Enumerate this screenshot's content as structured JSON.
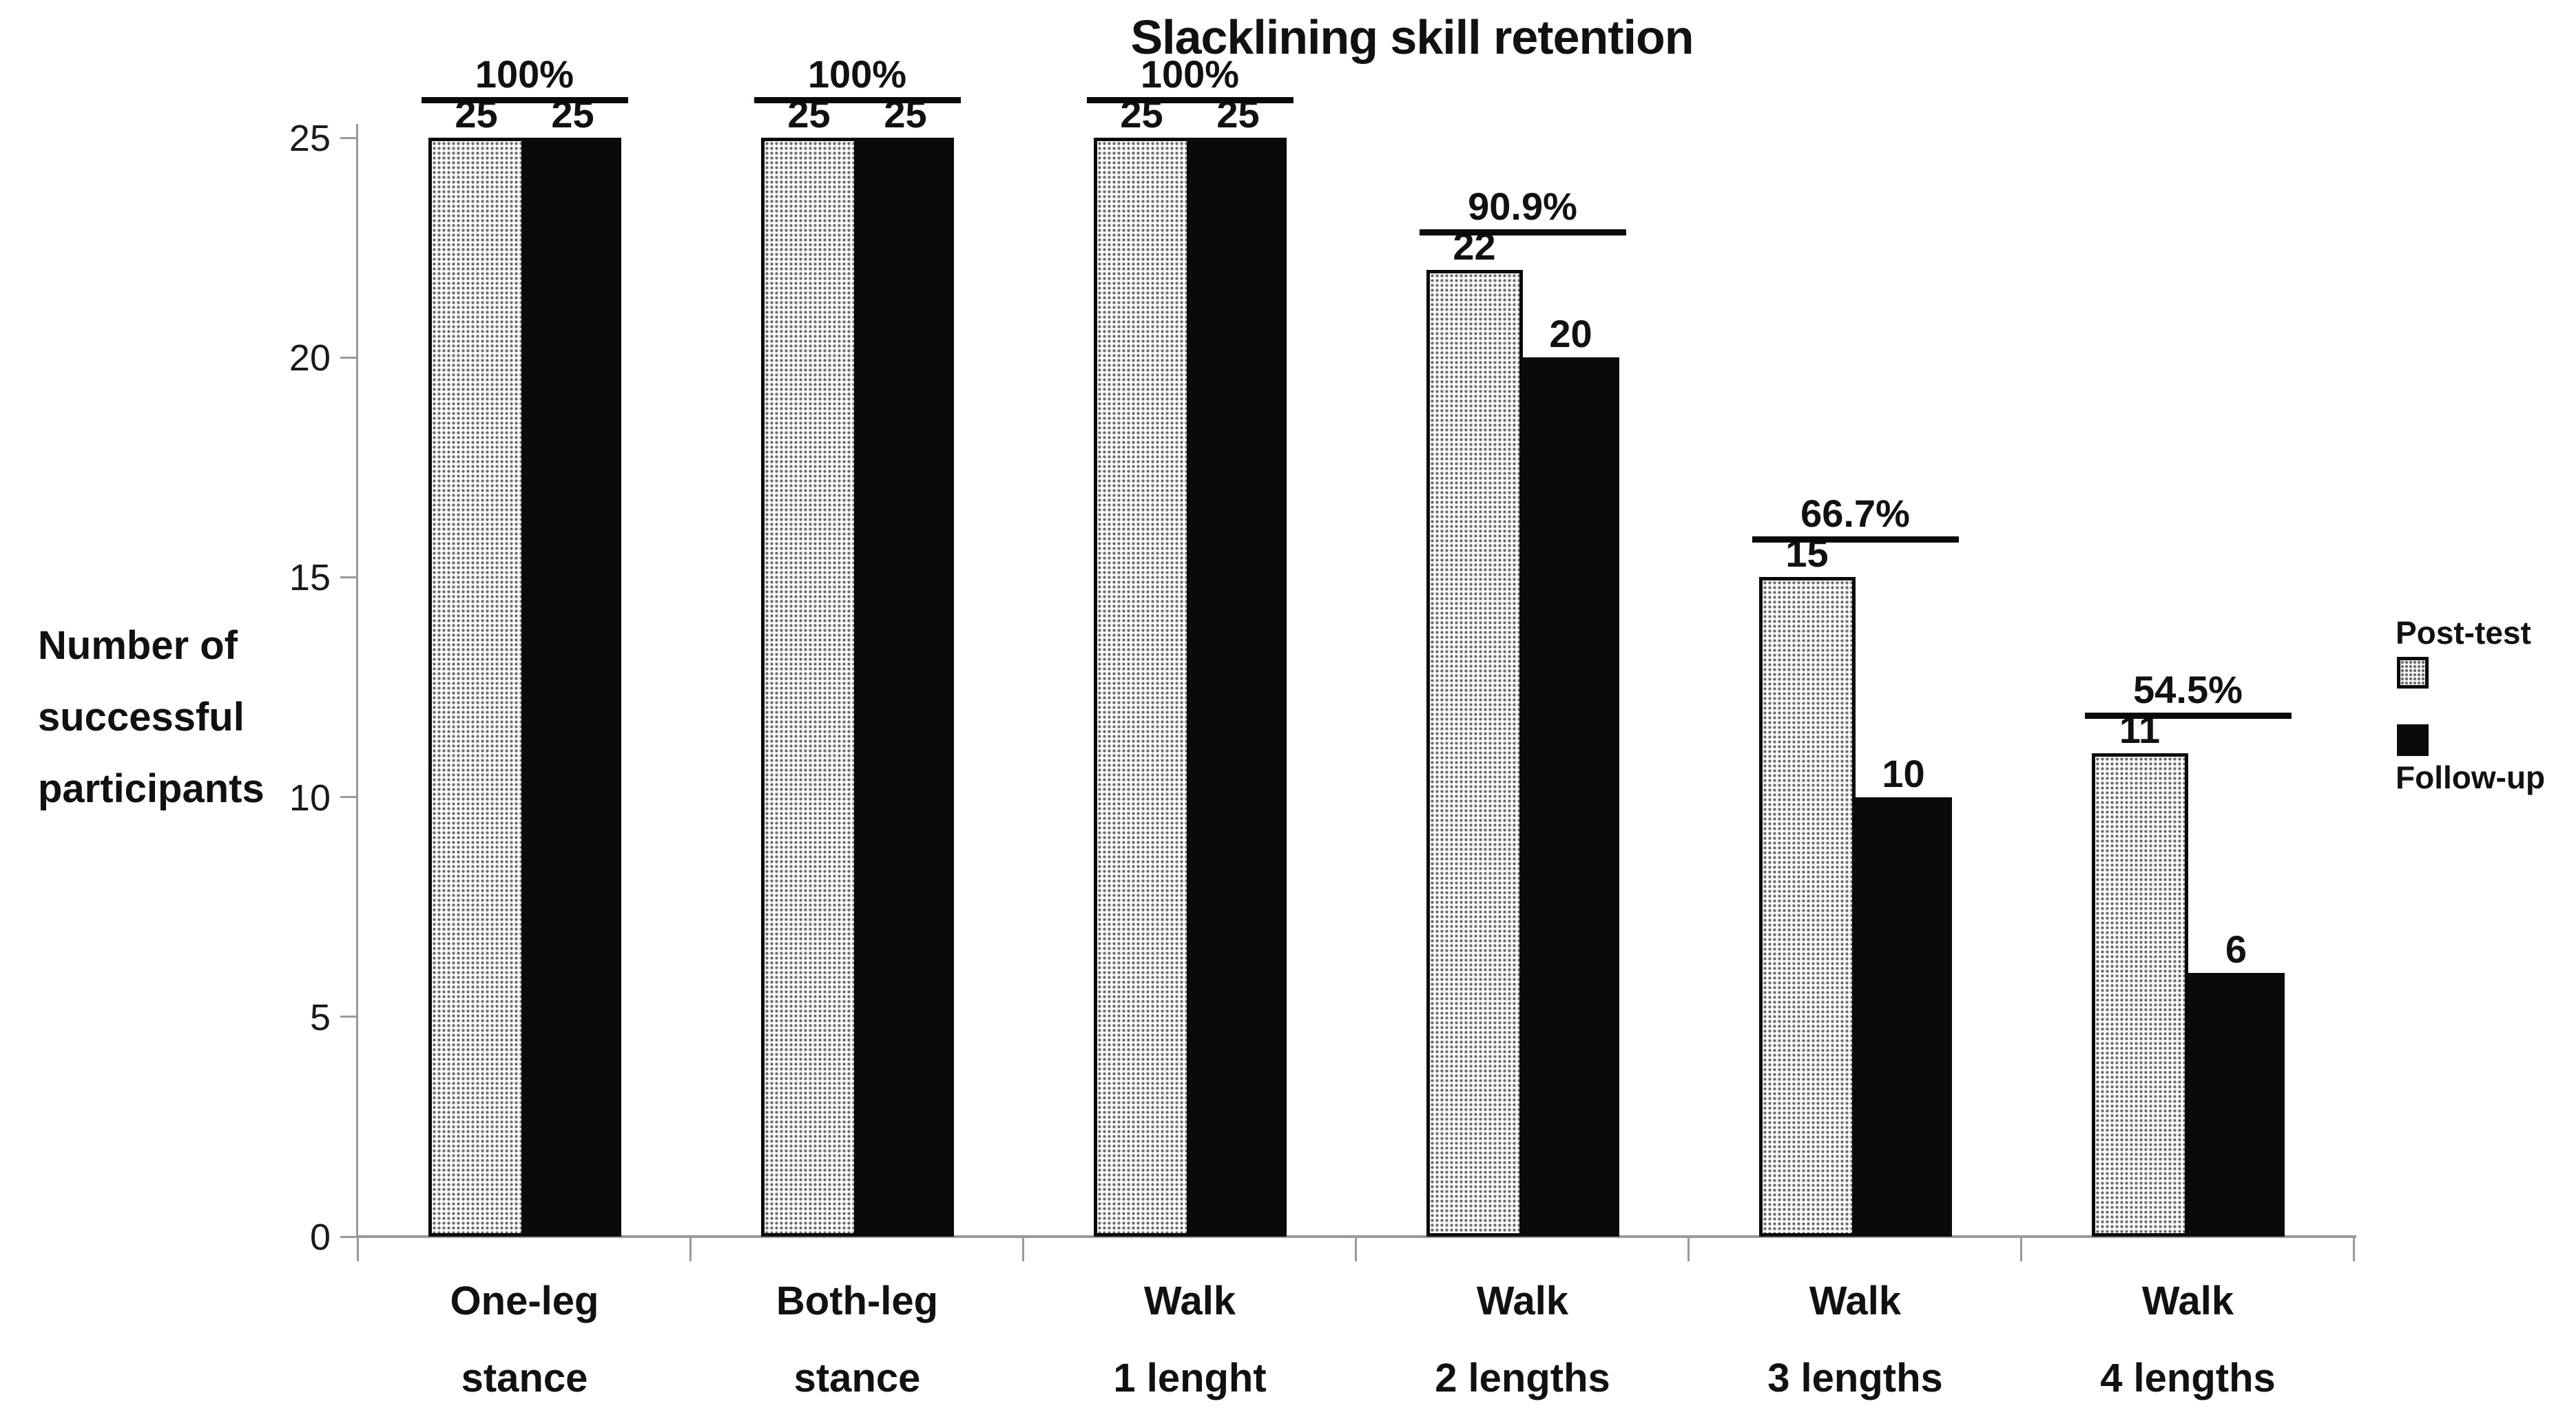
{
  "figure": {
    "title": "Slacklining skill retention"
  },
  "y_axis": {
    "label_lines": [
      "Number of",
      "successful",
      "participants"
    ],
    "tick_values": [
      0,
      5,
      10,
      15,
      20,
      25
    ]
  },
  "legend": {
    "items": [
      {
        "label": "Post-test",
        "swatch": "dotted-pattern"
      },
      {
        "label": "Follow-up",
        "swatch": "solid-black"
      }
    ]
  },
  "chart_data": {
    "type": "bar",
    "title": "Slacklining skill retention",
    "ylabel": "Number of successful participants",
    "xlabel": "",
    "ylim": [
      0,
      25
    ],
    "yticks": [
      0,
      5,
      10,
      15,
      20,
      25
    ],
    "grid": false,
    "legend_position": "right",
    "categories": [
      "One-leg stance",
      "Both-leg stance",
      "Walk 1 lenght",
      "Walk 2 lengths",
      "Walk 3 lengths",
      "Walk 4 lengths"
    ],
    "category_label_lines": [
      [
        "One-leg",
        "stance"
      ],
      [
        "Both-leg",
        "stance"
      ],
      [
        "Walk",
        "1 lenght"
      ],
      [
        "Walk",
        "2 lengths"
      ],
      [
        "Walk",
        "3 lengths"
      ],
      [
        "Walk",
        "4 lengths"
      ]
    ],
    "series": [
      {
        "name": "Post-test",
        "style": "dotted-pattern",
        "values": [
          25,
          25,
          25,
          22,
          15,
          11
        ]
      },
      {
        "name": "Follow-up",
        "style": "solid-black",
        "values": [
          25,
          25,
          25,
          20,
          10,
          6
        ]
      }
    ],
    "retention_labels": [
      "100%",
      "100%",
      "100%",
      "90.9%",
      "66.7%",
      "54.5%"
    ]
  },
  "colors": {
    "bar_black": "#0a0a0a",
    "axis_gray": "#9a9a9a",
    "text_black": "#111111",
    "pattern_dot_gray": "#6e6e6e",
    "pattern_bg": "#fdfdfd"
  }
}
